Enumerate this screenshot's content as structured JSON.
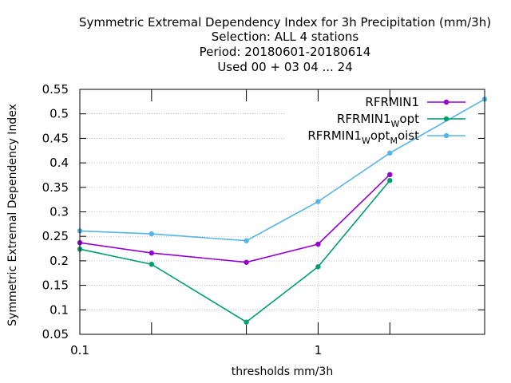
{
  "chart_data": {
    "type": "line",
    "title_lines": [
      "Symmetric Extremal Dependency Index  for 3h Precipitation (mm/3h)",
      "Selection: ALL      4 stations",
      "Period: 20180601-20180614",
      "Used  00 + 03 04 ... 24"
    ],
    "xlabel": "thresholds mm/3h",
    "ylabel": "Symmetric Extremal Dependency Index",
    "xscale": "log",
    "xlim": [
      0.1,
      5
    ],
    "ylim": [
      0.05,
      0.55
    ],
    "xticks": [
      {
        "value": 0.1,
        "label": "0.1"
      },
      {
        "value": 1,
        "label": "1"
      }
    ],
    "xminor_ticks": [
      0.2,
      0.5,
      2,
      5
    ],
    "yticks": [
      0.05,
      0.1,
      0.15,
      0.2,
      0.25,
      0.3,
      0.35,
      0.4,
      0.45,
      0.5,
      0.55
    ],
    "ytick_labels": [
      "0.05",
      "0.1",
      "0.15",
      "0.2",
      "0.25",
      "0.3",
      "0.35",
      "0.4",
      "0.45",
      "0.5",
      "0.55"
    ],
    "grid": true,
    "legend_position": "top-right",
    "series": [
      {
        "label_main": "RFRMIN1",
        "label_parts": [
          {
            "t": "RFRMIN1",
            "s": ""
          }
        ],
        "color": "#9400d3",
        "x": [
          0.1,
          0.2,
          0.5,
          1,
          2
        ],
        "y": [
          0.237,
          0.216,
          0.197,
          0.234,
          0.376
        ]
      },
      {
        "label_main": "RFRMIN1",
        "label_parts": [
          {
            "t": "RFRMIN1",
            "s": ""
          },
          {
            "t": "W",
            "s": "sub"
          },
          {
            "t": "opt",
            "s": ""
          }
        ],
        "color": "#009e73",
        "x": [
          0.1,
          0.2,
          0.5,
          1,
          2
        ],
        "y": [
          0.224,
          0.193,
          0.075,
          0.188,
          0.364
        ]
      },
      {
        "label_main": "RFRMIN1",
        "label_parts": [
          {
            "t": "RFRMIN1",
            "s": ""
          },
          {
            "t": "W",
            "s": "sub"
          },
          {
            "t": "opt",
            "s": ""
          },
          {
            "t": "M",
            "s": "sub"
          },
          {
            "t": "oist",
            "s": ""
          }
        ],
        "color": "#56b4e9",
        "x": [
          0.1,
          0.2,
          0.5,
          1,
          2,
          5
        ],
        "y": [
          0.261,
          0.255,
          0.241,
          0.321,
          0.42,
          0.53
        ]
      }
    ]
  }
}
